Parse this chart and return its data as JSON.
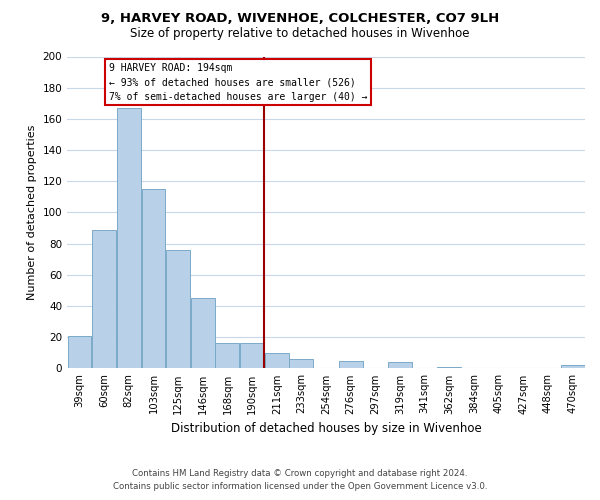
{
  "title": "9, HARVEY ROAD, WIVENHOE, COLCHESTER, CO7 9LH",
  "subtitle": "Size of property relative to detached houses in Wivenhoe",
  "xlabel": "Distribution of detached houses by size in Wivenhoe",
  "ylabel": "Number of detached properties",
  "bins": [
    "39sqm",
    "60sqm",
    "82sqm",
    "103sqm",
    "125sqm",
    "146sqm",
    "168sqm",
    "190sqm",
    "211sqm",
    "233sqm",
    "254sqm",
    "276sqm",
    "297sqm",
    "319sqm",
    "341sqm",
    "362sqm",
    "384sqm",
    "405sqm",
    "427sqm",
    "448sqm",
    "470sqm"
  ],
  "bar_heights": [
    21,
    89,
    167,
    115,
    76,
    45,
    16,
    16,
    10,
    6,
    0,
    5,
    0,
    4,
    0,
    1,
    0,
    0,
    0,
    0,
    2
  ],
  "bar_color": "#b8d0e8",
  "bar_edge_color": "#7aaac8",
  "vline_x_index": 7.5,
  "vline_color": "#990000",
  "annotation_box_color": "#cc0000",
  "annotation_text_line1": "9 HARVEY ROAD: 194sqm",
  "annotation_text_line2": "← 93% of detached houses are smaller (526)",
  "annotation_text_line3": "7% of semi-detached houses are larger (40) →",
  "ylim": [
    0,
    200
  ],
  "yticks": [
    0,
    20,
    40,
    60,
    80,
    100,
    120,
    140,
    160,
    180,
    200
  ],
  "footer_line1": "Contains HM Land Registry data © Crown copyright and database right 2024.",
  "footer_line2": "Contains public sector information licensed under the Open Government Licence v3.0.",
  "bg_color": "#ffffff",
  "grid_color": "#c8d8e8"
}
